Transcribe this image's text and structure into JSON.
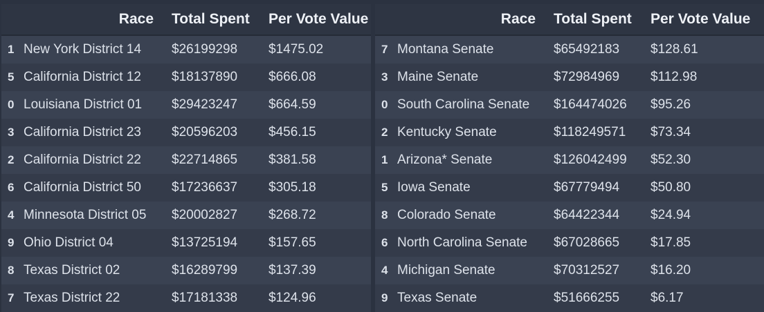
{
  "chart_data": [
    {
      "type": "table",
      "columns": [
        "",
        "Race",
        "Total Spent",
        "Per Vote Value"
      ],
      "rows": [
        [
          "1",
          "New York District 14",
          "$26199298",
          "$1475.02"
        ],
        [
          "5",
          "California District 12",
          "$18137890",
          "$666.08"
        ],
        [
          "0",
          "Louisiana District 01",
          "$29423247",
          "$664.59"
        ],
        [
          "3",
          "California District 23",
          "$20596203",
          "$456.15"
        ],
        [
          "2",
          "California District 22",
          "$22714865",
          "$381.58"
        ],
        [
          "6",
          "California District 50",
          "$17236637",
          "$305.18"
        ],
        [
          "4",
          "Minnesota District 05",
          "$20002827",
          "$268.72"
        ],
        [
          "9",
          "Ohio District 04",
          "$13725194",
          "$157.65"
        ],
        [
          "8",
          "Texas District 02",
          "$16289799",
          "$137.39"
        ],
        [
          "7",
          "Texas District 22",
          "$17181338",
          "$124.96"
        ]
      ]
    },
    {
      "type": "table",
      "columns": [
        "",
        "Race",
        "Total Spent",
        "Per Vote Value"
      ],
      "rows": [
        [
          "7",
          "Montana Senate",
          "$65492183",
          "$128.61"
        ],
        [
          "3",
          "Maine Senate",
          "$72984969",
          "$112.98"
        ],
        [
          "0",
          "South Carolina Senate",
          "$164474026",
          "$95.26"
        ],
        [
          "2",
          "Kentucky Senate",
          "$118249571",
          "$73.34"
        ],
        [
          "1",
          "Arizona* Senate",
          "$126042499",
          "$52.30"
        ],
        [
          "5",
          "Iowa Senate",
          "$67779494",
          "$50.80"
        ],
        [
          "8",
          "Colorado Senate",
          "$64422344",
          "$24.94"
        ],
        [
          "6",
          "North Carolina Senate",
          "$67028665",
          "$17.85"
        ],
        [
          "4",
          "Michigan Senate",
          "$70312527",
          "$16.20"
        ],
        [
          "9",
          "Texas Senate",
          "$51666255",
          "$6.17"
        ]
      ]
    }
  ]
}
